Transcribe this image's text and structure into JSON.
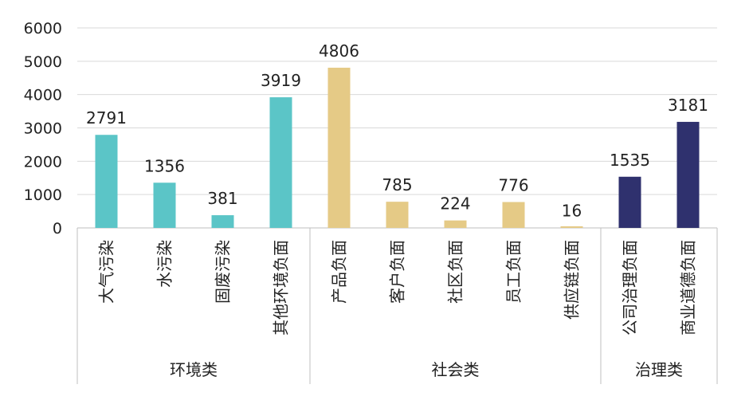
{
  "chart_data": {
    "type": "bar",
    "ylim": [
      0,
      6000
    ],
    "yticks": [
      0,
      1000,
      2000,
      3000,
      4000,
      5000,
      6000
    ],
    "grid": true,
    "categories": [
      "大气污染",
      "水污染",
      "固废污染",
      "其他环境负面",
      "产品负面",
      "客户负面",
      "社区负面",
      "员工负面",
      "供应链负面",
      "公司治理负面",
      "商业道德负面"
    ],
    "values": [
      2791,
      1356,
      381,
      3919,
      4806,
      785,
      224,
      776,
      16,
      1535,
      3181
    ],
    "groups": [
      {
        "name": "环境类",
        "count": 4,
        "color": "#5BC5C7"
      },
      {
        "name": "社会类",
        "count": 5,
        "color": "#E5CA86"
      },
      {
        "name": "治理类",
        "count": 2,
        "color": "#2F316E"
      }
    ]
  }
}
